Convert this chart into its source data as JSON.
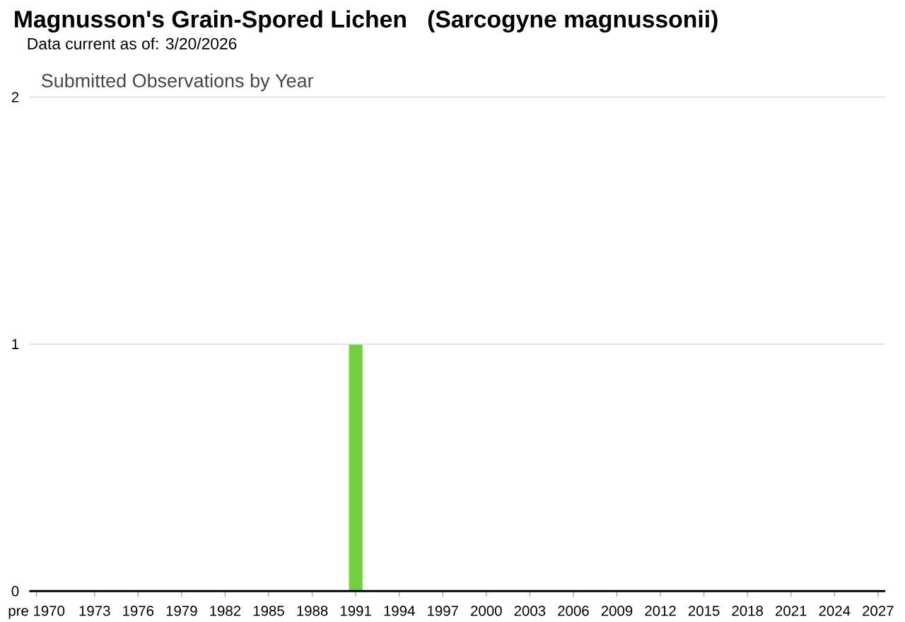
{
  "chart_data": {
    "type": "bar",
    "title": "Magnusson's Grain-Spored Lichen   (Sarcogyne magnussonii)",
    "subtitle": "Data current as of: 3/20/2026",
    "annotations": [
      "Submitted Observations by Year"
    ],
    "categories": [
      "pre 1970",
      null,
      null,
      null,
      "1973",
      null,
      null,
      "1976",
      null,
      null,
      "1979",
      null,
      null,
      "1982",
      null,
      null,
      "1985",
      null,
      null,
      "1988",
      null,
      null,
      "1991",
      null,
      null,
      "1994",
      null,
      null,
      "1997",
      null,
      null,
      "2000",
      null,
      null,
      "2003",
      null,
      null,
      "2006",
      null,
      null,
      "2009",
      null,
      null,
      "2012",
      null,
      null,
      "2015",
      null,
      null,
      "2018",
      null,
      null,
      "2021",
      null,
      null,
      "2024",
      null,
      null,
      "2027"
    ],
    "values": [
      0,
      0,
      0,
      0,
      0,
      0,
      0,
      0,
      0,
      0,
      0,
      0,
      0,
      0,
      0,
      0,
      0,
      0,
      0,
      0,
      0,
      0,
      1,
      0,
      0,
      0,
      0,
      0,
      0,
      0,
      0,
      0,
      0,
      0,
      0,
      0,
      0,
      0,
      0,
      0,
      0,
      0,
      0,
      0,
      0,
      0,
      0,
      0,
      0,
      0,
      0,
      0,
      0,
      0,
      0,
      0,
      0,
      0,
      0
    ],
    "color": "#72d03e",
    "ylim": [
      0,
      2
    ],
    "yticks": [
      0,
      1,
      2
    ],
    "grid": "y"
  }
}
